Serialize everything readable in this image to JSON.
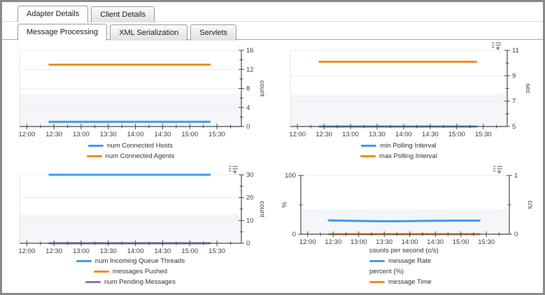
{
  "tabs": {
    "primary": [
      {
        "label": "Adapter Details",
        "active": true
      },
      {
        "label": "Client Details",
        "active": false
      }
    ],
    "secondary": [
      {
        "label": "Message Processing",
        "active": true
      },
      {
        "label": "XML Serialization",
        "active": false
      },
      {
        "label": "Servlets",
        "active": false
      }
    ]
  },
  "time_axis": {
    "tick_labels": [
      "12:00",
      "12:30",
      "13:00",
      "13:30",
      "14:00",
      "14:30",
      "15:00",
      "15:30"
    ],
    "minor_interval_minutes": 15
  },
  "colors": {
    "blue": "#3f9bef",
    "orange": "#ef8d1f",
    "purple": "#8f6fc4",
    "axis": "#4a4a4a",
    "grid": "#ececec",
    "band": "#f4f6f9",
    "label": "#3d3d3d"
  },
  "chart_data": [
    {
      "type": "line",
      "ylabel": "count",
      "ylim": [
        0,
        16
      ],
      "yticks": [
        16,
        12,
        8,
        4,
        0
      ],
      "x": [
        "12:25",
        "15:22"
      ],
      "series": [
        {
          "name": "numConnectedHosts",
          "label": "num Connected Hosts",
          "color": "blue",
          "values": [
            1,
            1
          ]
        },
        {
          "name": "numConnectedAgents",
          "label": "num Connected Agents",
          "color": "orange",
          "values": [
            13,
            13
          ]
        }
      ],
      "has_menu_icon": false
    },
    {
      "type": "line",
      "ylabel": "sec",
      "ylim": [
        5,
        11
      ],
      "yticks": [
        11,
        9,
        7,
        5
      ],
      "x": [
        "12:25",
        "15:22"
      ],
      "series": [
        {
          "name": "minPollingInterval",
          "label": "min Polling Interval",
          "color": "blue",
          "values": [
            5,
            5
          ]
        },
        {
          "name": "maxPollingInterval",
          "label": "max Polling Interval",
          "color": "orange",
          "values": [
            10.1,
            10.1
          ]
        }
      ],
      "has_menu_icon": true
    },
    {
      "type": "line",
      "ylabel": "count",
      "ylim": [
        0,
        30
      ],
      "yticks": [
        30,
        20,
        10,
        0
      ],
      "x": [
        "12:25",
        "15:22"
      ],
      "series": [
        {
          "name": "numIncomingQueueThreads",
          "label": "num Incoming Queue Threads",
          "color": "blue",
          "values": [
            30,
            30
          ]
        },
        {
          "name": "messagesPushed",
          "label": "messages Pushed",
          "color": "orange",
          "values": [
            0,
            0
          ]
        },
        {
          "name": "numPendingMessages",
          "label": "num Pending Messages",
          "color": "purple",
          "values": [
            0,
            0
          ]
        }
      ],
      "has_menu_icon": true
    },
    {
      "type": "line",
      "dual_axis": true,
      "ylabel_left": "%",
      "ylim_left": [
        0,
        100
      ],
      "yticks_left": [
        100,
        0
      ],
      "ylabel_right": "c/s",
      "ylim_right": [
        0,
        1
      ],
      "yticks_right": [
        1,
        0
      ],
      "series": [
        {
          "name": "messageRate",
          "label": "message Rate",
          "color": "blue",
          "axis": "right",
          "x": [
            "12:25",
            "12:40",
            "13:05",
            "13:30",
            "13:55",
            "14:20",
            "14:50",
            "15:22"
          ],
          "values": [
            0.235,
            0.23,
            0.225,
            0.22,
            0.222,
            0.228,
            0.23,
            0.23
          ]
        },
        {
          "name": "messageTime",
          "label": "message Time",
          "color": "orange",
          "axis": "left",
          "x": [
            "12:25",
            "15:22"
          ],
          "values": [
            0,
            0
          ]
        }
      ],
      "legend_groups": [
        {
          "header": "counts per second (c/s)",
          "series": "messageRate"
        },
        {
          "header": "percent (%)",
          "series": "messageTime"
        }
      ],
      "has_menu_icon": true
    }
  ]
}
